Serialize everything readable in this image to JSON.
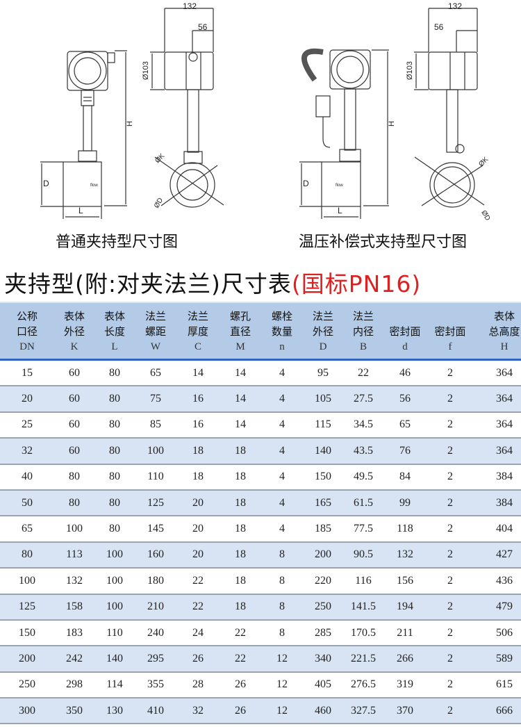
{
  "diagrams": {
    "left": {
      "caption": "普通夹持型尺寸图",
      "labels": {
        "width": "132",
        "offset": "56",
        "head_dia": "Ø103",
        "height": "H",
        "pipe_d": "D",
        "length": "L",
        "k": "ØK",
        "d": "ØD",
        "flow": "flow"
      }
    },
    "right": {
      "caption": "温压补偿式夹持型尺寸图",
      "labels": {
        "width": "132",
        "offset": "56",
        "head_dia": "Ø103",
        "height": "H",
        "pipe_d": "D",
        "length": "L",
        "k": "ØK",
        "d": "ØD",
        "flow": "flow"
      }
    }
  },
  "title": {
    "main": "夹持型(附:对夹法兰)尺寸表",
    "standard": "(国标PN16)",
    "accent_color": "#e02020"
  },
  "table": {
    "columns": [
      {
        "name": "公称口径",
        "l1": "公称",
        "l2": "口径",
        "sym": "DN"
      },
      {
        "name": "表体外径",
        "l1": "表体",
        "l2": "外径",
        "sym": "K"
      },
      {
        "name": "表体长度",
        "l1": "表体",
        "l2": "长度",
        "sym": "L"
      },
      {
        "name": "法兰螺距",
        "l1": "法兰",
        "l2": "螺距",
        "sym": "W"
      },
      {
        "name": "法兰厚度",
        "l1": "法兰",
        "l2": "厚度",
        "sym": "C"
      },
      {
        "name": "螺孔直径",
        "l1": "螺孔",
        "l2": "直径",
        "sym": "M"
      },
      {
        "name": "螺栓数量",
        "l1": "螺栓",
        "l2": "数量",
        "sym": "n"
      },
      {
        "name": "法兰外径",
        "l1": "法兰",
        "l2": "外径",
        "sym": "D"
      },
      {
        "name": "法兰内径",
        "l1": "法兰",
        "l2": "内径",
        "sym": "B"
      },
      {
        "name": "密封面",
        "l1": "",
        "l2": "密封面",
        "sym": "d"
      },
      {
        "name": "密封面",
        "l1": "",
        "l2": "密封面",
        "sym": "f"
      },
      {
        "name": "表体总高度",
        "l1": "表体",
        "l2": "总高度",
        "sym": "H"
      }
    ],
    "rows": [
      [
        "15",
        "60",
        "80",
        "65",
        "14",
        "14",
        "4",
        "95",
        "22",
        "46",
        "2",
        "364"
      ],
      [
        "20",
        "60",
        "80",
        "75",
        "16",
        "14",
        "4",
        "105",
        "27.5",
        "56",
        "2",
        "364"
      ],
      [
        "25",
        "60",
        "80",
        "85",
        "16",
        "14",
        "4",
        "115",
        "34.5",
        "65",
        "2",
        "364"
      ],
      [
        "32",
        "60",
        "80",
        "100",
        "18",
        "18",
        "4",
        "140",
        "43.5",
        "76",
        "2",
        "364"
      ],
      [
        "40",
        "80",
        "80",
        "110",
        "18",
        "18",
        "4",
        "150",
        "49.5",
        "84",
        "2",
        "384"
      ],
      [
        "50",
        "80",
        "80",
        "125",
        "20",
        "18",
        "4",
        "165",
        "61.5",
        "99",
        "2",
        "384"
      ],
      [
        "65",
        "100",
        "80",
        "145",
        "20",
        "18",
        "4",
        "185",
        "77.5",
        "118",
        "2",
        "404"
      ],
      [
        "80",
        "113",
        "100",
        "160",
        "20",
        "18",
        "8",
        "200",
        "90.5",
        "132",
        "2",
        "427"
      ],
      [
        "100",
        "132",
        "100",
        "180",
        "22",
        "18",
        "8",
        "220",
        "116",
        "156",
        "2",
        "436"
      ],
      [
        "125",
        "158",
        "100",
        "210",
        "22",
        "18",
        "8",
        "250",
        "141.5",
        "194",
        "2",
        "479"
      ],
      [
        "150",
        "183",
        "110",
        "240",
        "24",
        "22",
        "8",
        "285",
        "170.5",
        "211",
        "2",
        "506"
      ],
      [
        "200",
        "242",
        "140",
        "295",
        "26",
        "22",
        "12",
        "340",
        "221.5",
        "266",
        "2",
        "589"
      ],
      [
        "250",
        "298",
        "114",
        "355",
        "28",
        "26",
        "12",
        "405",
        "276.5",
        "319",
        "2",
        "615"
      ],
      [
        "300",
        "350",
        "130",
        "410",
        "32",
        "26",
        "12",
        "460",
        "327.5",
        "370",
        "2",
        "666"
      ]
    ]
  }
}
